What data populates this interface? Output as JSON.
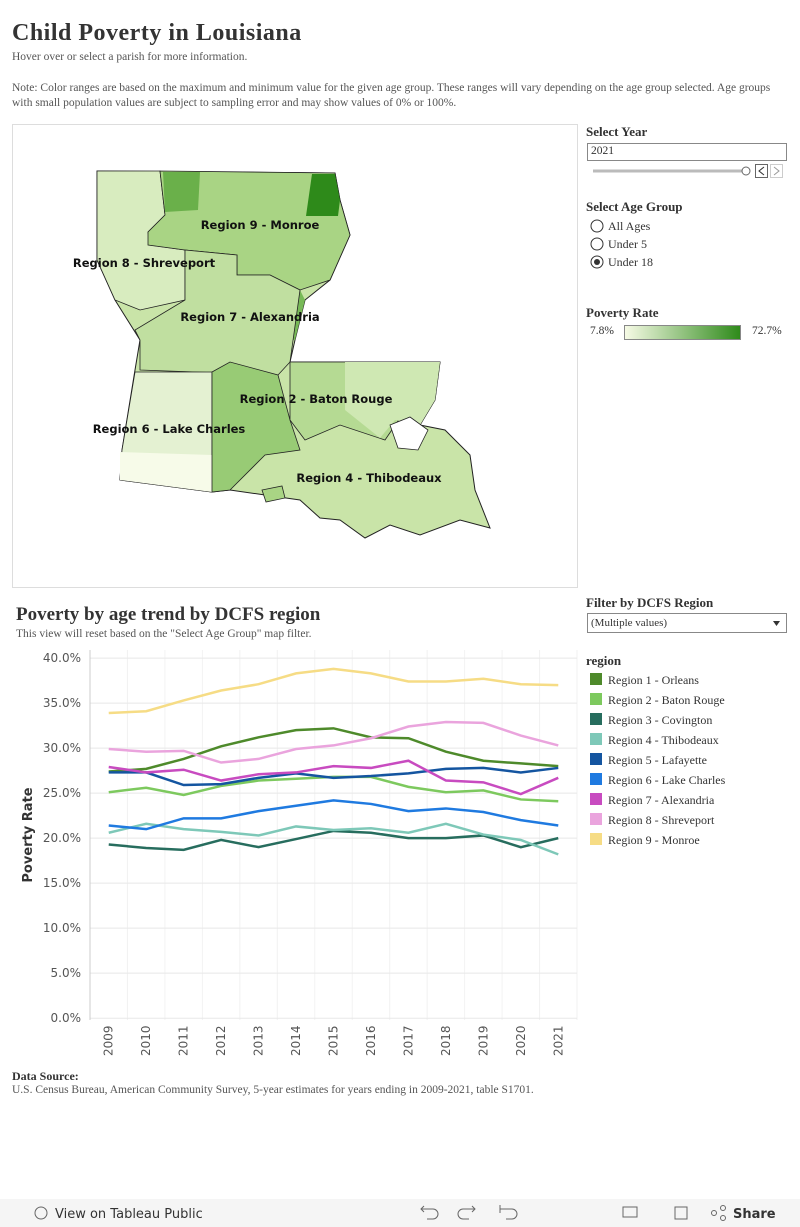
{
  "header": {
    "title": "Child Poverty in Louisiana",
    "subtitle": "Hover over or select a parish for more information.",
    "note": "Note: Color ranges are based on the maximum and minimum value for the given age group. These ranges will vary depending on the age group selected. Age groups with small population values are subject to sampling error and may show values of 0% or 100%."
  },
  "map": {
    "regions": [
      "Region 9 - Monroe",
      "Region 8 - Shreveport",
      "Region 7 - Alexandria",
      "Region 2 - Baton Rouge",
      "Region 6 - Lake Charles",
      "Region 4 - Thibodeaux"
    ]
  },
  "controls": {
    "year_title": "Select Year",
    "year": "2021",
    "age_title": "Select Age Group",
    "age_options": [
      "All Ages",
      "Under 5",
      "Under 18"
    ],
    "age_selected": 2,
    "rate_title": "Poverty Rate",
    "rate_min": "7.8%",
    "rate_max": "72.7%",
    "region_filter_title": "Filter by DCFS Region",
    "region_filter_value": "(Multiple values)"
  },
  "chart_data": {
    "type": "line",
    "title": "Poverty by age trend by DCFS region",
    "subtitle": "This view will reset based on the \"Select Age Group\" map filter.",
    "y_label": "Poverty Rate",
    "legend_title": "region",
    "grid": true,
    "categories": [
      "2009",
      "2010",
      "2011",
      "2012",
      "2013",
      "2014",
      "2015",
      "2016",
      "2017",
      "2018",
      "2019",
      "2020",
      "2021"
    ],
    "ylim": [
      -0.2,
      40.9
    ],
    "yticks": [
      {
        "value": 0,
        "label": "0.0%"
      },
      {
        "value": 5,
        "label": "5.0%"
      },
      {
        "value": 10,
        "label": "10.0%"
      },
      {
        "value": 15,
        "label": "15.0%"
      },
      {
        "value": 20,
        "label": "20.0%"
      },
      {
        "value": 25,
        "label": "25.0%"
      },
      {
        "value": 30,
        "label": "30.0%"
      },
      {
        "value": 35,
        "label": "35.0%"
      },
      {
        "value": 40,
        "label": "40.0%"
      }
    ],
    "series": [
      {
        "name": "Region 1 - Orleans",
        "color": "#4e8a2b",
        "values": [
          27.4,
          27.7,
          28.8,
          30.2,
          31.2,
          32.0,
          32.2,
          31.2,
          31.1,
          29.6,
          28.6,
          28.3,
          28.0
        ]
      },
      {
        "name": "Region 2 - Baton Rouge",
        "color": "#7dc95e",
        "values": [
          25.1,
          25.6,
          24.8,
          25.8,
          26.4,
          26.6,
          26.8,
          26.8,
          25.7,
          25.1,
          25.3,
          24.3,
          24.1
        ]
      },
      {
        "name": "Region 3 - Covington",
        "color": "#276d5e",
        "values": [
          19.3,
          18.9,
          18.7,
          19.8,
          19.0,
          19.9,
          20.8,
          20.6,
          20.0,
          20.0,
          20.3,
          19.0,
          20.0
        ]
      },
      {
        "name": "Region 4 - Thibodeaux",
        "color": "#7ec8b8",
        "values": [
          20.6,
          21.6,
          21.0,
          20.7,
          20.3,
          21.3,
          20.9,
          21.1,
          20.6,
          21.6,
          20.4,
          19.8,
          18.2
        ]
      },
      {
        "name": "Region 5 - Lafayette",
        "color": "#1455a0",
        "values": [
          27.3,
          27.3,
          25.9,
          26.0,
          26.7,
          27.2,
          26.7,
          26.9,
          27.2,
          27.7,
          27.8,
          27.3,
          27.8
        ]
      },
      {
        "name": "Region 6 - Lake Charles",
        "color": "#1f7ae0",
        "values": [
          21.4,
          21.0,
          22.2,
          22.2,
          23.0,
          23.6,
          24.2,
          23.8,
          23.0,
          23.3,
          22.9,
          22.0,
          21.4
        ]
      },
      {
        "name": "Region 7 - Alexandria",
        "color": "#c84bc0",
        "values": [
          27.9,
          27.3,
          27.6,
          26.4,
          27.1,
          27.3,
          28.0,
          27.8,
          28.6,
          26.4,
          26.2,
          24.9,
          26.7
        ]
      },
      {
        "name": "Region 8 - Shreveport",
        "color": "#eaa4dd",
        "values": [
          29.9,
          29.6,
          29.7,
          28.4,
          28.8,
          29.9,
          30.3,
          31.1,
          32.4,
          32.9,
          32.8,
          31.4,
          30.3
        ]
      },
      {
        "name": "Region 9 - Monroe",
        "color": "#f6dc85",
        "values": [
          33.9,
          34.1,
          35.3,
          36.4,
          37.1,
          38.3,
          38.8,
          38.3,
          37.4,
          37.4,
          37.7,
          37.1,
          37.0
        ]
      }
    ]
  },
  "source": {
    "title": "Data Source:",
    "text": "U.S. Census Bureau, American Community Survey, 5-year estimates for years ending in 2009-2021, table S1701."
  },
  "toolbar": {
    "view": "View on Tableau Public",
    "share": "Share"
  }
}
